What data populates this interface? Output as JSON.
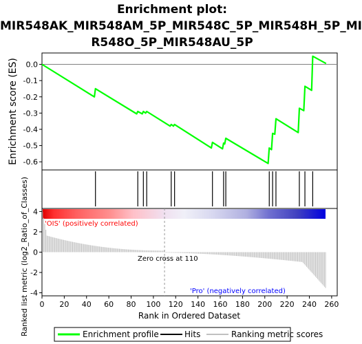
{
  "title_lines": [
    "Enrichment plot:",
    "MIR548AK_MIR548AM_5P_MIR548C_5P_MIR548H_5P_MI",
    "R548O_5P_MIR548AU_5P"
  ],
  "es_axis_label": "Enrichment score (ES)",
  "metric_axis_label": "Ranked list metric (log2_Ratio_of_Classes)",
  "x_axis_label": "Rank in Ordered Dataset",
  "pos_label": "'OIS' (positively correlated)",
  "neg_label": "'Pro' (negatively correlated)",
  "zero_cross_label": "Zero cross at 110",
  "legend": {
    "enrichment": "Enrichment profile",
    "hits": "Hits",
    "ranking": "Ranking metric scores"
  },
  "colors": {
    "enrichment_line": "#00ff00",
    "hit_line": "#000000",
    "metric_bar": "#c0c0c0",
    "pos_label": "#ff0000",
    "neg_label": "#0000ff"
  },
  "chart_data": {
    "type": "line",
    "x_range": [
      0,
      265
    ],
    "x_ticks": [
      0,
      20,
      40,
      60,
      80,
      100,
      120,
      140,
      160,
      180,
      200,
      220,
      240,
      260
    ],
    "es_ylim": [
      -0.65,
      0.07
    ],
    "es_ticks": [
      0.0,
      -0.1,
      -0.2,
      -0.3,
      -0.4,
      -0.5,
      -0.6
    ],
    "metric_ylim": [
      -4.3,
      4.3
    ],
    "metric_ticks": [
      4,
      2,
      0,
      -2,
      -4
    ],
    "n_genes": 255,
    "zero_cross": 110,
    "hits": [
      48,
      86,
      91,
      94,
      116,
      119,
      153,
      163,
      165,
      204,
      207,
      210,
      231,
      236,
      243
    ],
    "enrichment_profile": {
      "x": [
        0,
        47,
        48,
        85,
        86,
        90,
        91,
        93,
        94,
        115,
        116,
        118,
        119,
        152,
        153,
        162,
        163,
        164,
        165,
        203,
        204,
        206,
        207,
        209,
        210,
        230,
        231,
        235,
        236,
        242,
        243,
        255
      ],
      "y": [
        0.0,
        -0.2,
        -0.15,
        -0.305,
        -0.29,
        -0.305,
        -0.29,
        -0.3,
        -0.29,
        -0.38,
        -0.37,
        -0.38,
        -0.37,
        -0.515,
        -0.48,
        -0.52,
        -0.485,
        -0.49,
        -0.455,
        -0.61,
        -0.515,
        -0.525,
        -0.425,
        -0.43,
        -0.335,
        -0.42,
        -0.27,
        -0.285,
        -0.135,
        -0.16,
        0.05,
        0.005
      ]
    }
  }
}
